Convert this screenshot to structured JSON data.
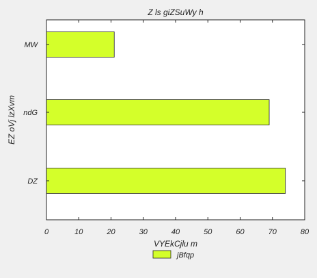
{
  "chart_data": {
    "type": "bar",
    "orientation": "horizontal",
    "title": "Z ls giZSuWy h",
    "xlabel": "VYEkCjlu m",
    "ylabel": "EZ oVj lzXvm",
    "categories": [
      "DZ",
      "ndG",
      "MW"
    ],
    "series": [
      {
        "name": "jBfqp",
        "values": [
          74,
          69,
          21
        ]
      }
    ],
    "xlim": [
      0,
      80
    ],
    "xticks": [
      0,
      10,
      20,
      30,
      40,
      50,
      60,
      70,
      80
    ],
    "grid": false,
    "legend_position": "bottom-center",
    "colors": {
      "bar": "#d4ff2a",
      "bar_edge": "#222222",
      "plot_bg": "#ffffff",
      "figure_bg": "#f0f0f0"
    }
  }
}
